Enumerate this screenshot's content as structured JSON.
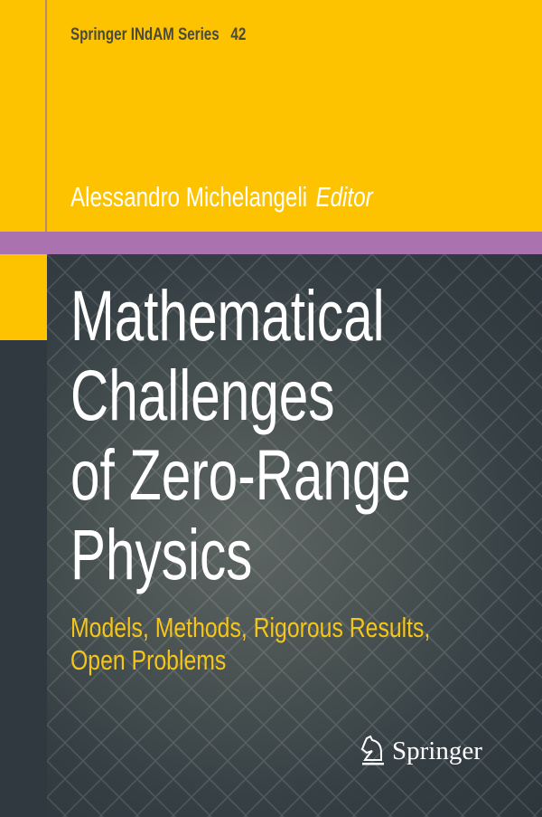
{
  "cover": {
    "series": "Springer INdAM Series",
    "series_number": "42",
    "editor_name": "Alessandro Michelangeli",
    "editor_role": "Editor",
    "title_lines": [
      "Mathematical",
      "Challenges",
      "of Zero-Range",
      "Physics"
    ],
    "subtitle_lines": [
      "Models, Methods, Rigorous Results,",
      "Open Problems"
    ],
    "publisher": "Springer",
    "colors": {
      "yellow": "#fdc300",
      "purple": "#ab72b0",
      "dark": "#2e383e",
      "subtitle": "#f5c518"
    }
  }
}
